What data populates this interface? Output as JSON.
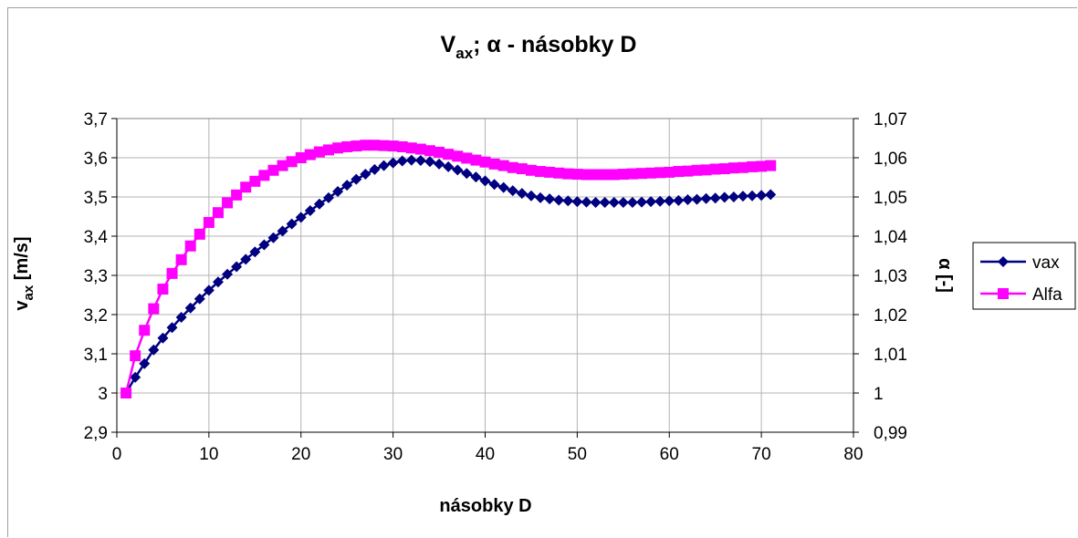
{
  "chart_data": {
    "type": "line",
    "title": "V",
    "title_sub": "ax",
    "title_rest": "; α - násobky D",
    "xlabel": "násobky D",
    "ylabel": "v",
    "ylabel_sub": "ax",
    "ylabel_rest": " [m/s]",
    "y2label": "α [-]",
    "xlim": [
      0,
      80
    ],
    "ylim": [
      2.9,
      3.7
    ],
    "y2lim": [
      0.99,
      1.07
    ],
    "x_ticks": [
      "0",
      "10",
      "20",
      "30",
      "40",
      "50",
      "60",
      "70",
      "80"
    ],
    "y_ticks": [
      "2,9",
      "3",
      "3,1",
      "3,2",
      "3,3",
      "3,4",
      "3,5",
      "3,6",
      "3,7"
    ],
    "y2_ticks": [
      "0,99",
      "1",
      "1,01",
      "1,02",
      "1,03",
      "1,04",
      "1,05",
      "1,06",
      "1,07"
    ],
    "grid": true,
    "legend_position": "right",
    "x": [
      1,
      2,
      3,
      4,
      5,
      6,
      7,
      8,
      9,
      10,
      11,
      12,
      13,
      14,
      15,
      16,
      17,
      18,
      19,
      20,
      21,
      22,
      23,
      24,
      25,
      26,
      27,
      28,
      29,
      30,
      31,
      32,
      33,
      34,
      35,
      36,
      37,
      38,
      39,
      40,
      41,
      42,
      43,
      44,
      45,
      46,
      47,
      48,
      49,
      50,
      51,
      52,
      53,
      54,
      55,
      56,
      57,
      58,
      59,
      60,
      61,
      62,
      63,
      64,
      65,
      66,
      67,
      68,
      69,
      70,
      71
    ],
    "series": [
      {
        "name": "vax",
        "axis": "left",
        "color": "#000080",
        "marker": "diamond",
        "values": [
          3.0,
          3.04,
          3.075,
          3.11,
          3.14,
          3.167,
          3.193,
          3.217,
          3.24,
          3.262,
          3.283,
          3.303,
          3.322,
          3.341,
          3.36,
          3.378,
          3.396,
          3.413,
          3.431,
          3.448,
          3.465,
          3.482,
          3.498,
          3.514,
          3.53,
          3.545,
          3.558,
          3.57,
          3.58,
          3.587,
          3.592,
          3.594,
          3.593,
          3.59,
          3.584,
          3.577,
          3.569,
          3.56,
          3.551,
          3.541,
          3.532,
          3.524,
          3.516,
          3.509,
          3.503,
          3.498,
          3.495,
          3.492,
          3.49,
          3.488,
          3.487,
          3.486,
          3.486,
          3.486,
          3.486,
          3.486,
          3.487,
          3.488,
          3.489,
          3.49,
          3.491,
          3.493,
          3.494,
          3.496,
          3.497,
          3.499,
          3.5,
          3.502,
          3.503,
          3.504,
          3.506
        ]
      },
      {
        "name": "Alfa",
        "axis": "right",
        "color": "#ff00ff",
        "marker": "square",
        "values": [
          1.0,
          1.0095,
          1.016,
          1.0215,
          1.0265,
          1.0305,
          1.034,
          1.0375,
          1.0405,
          1.0435,
          1.046,
          1.0485,
          1.0505,
          1.0525,
          1.054,
          1.0555,
          1.0568,
          1.058,
          1.059,
          1.06,
          1.0608,
          1.0615,
          1.062,
          1.0625,
          1.0628,
          1.063,
          1.0632,
          1.0632,
          1.0631,
          1.063,
          1.0628,
          1.0625,
          1.0622,
          1.0618,
          1.0614,
          1.0609,
          1.0604,
          1.0599,
          1.0594,
          1.0589,
          1.0584,
          1.058,
          1.0575,
          1.0572,
          1.0568,
          1.0565,
          1.0563,
          1.0561,
          1.0559,
          1.0558,
          1.0557,
          1.0557,
          1.0557,
          1.0557,
          1.0558,
          1.0559,
          1.056,
          1.0561,
          1.0562,
          1.0563,
          1.0565,
          1.0566,
          1.0568,
          1.0569,
          1.0571,
          1.0572,
          1.0574,
          1.0575,
          1.0577,
          1.0578,
          1.058
        ]
      }
    ]
  }
}
